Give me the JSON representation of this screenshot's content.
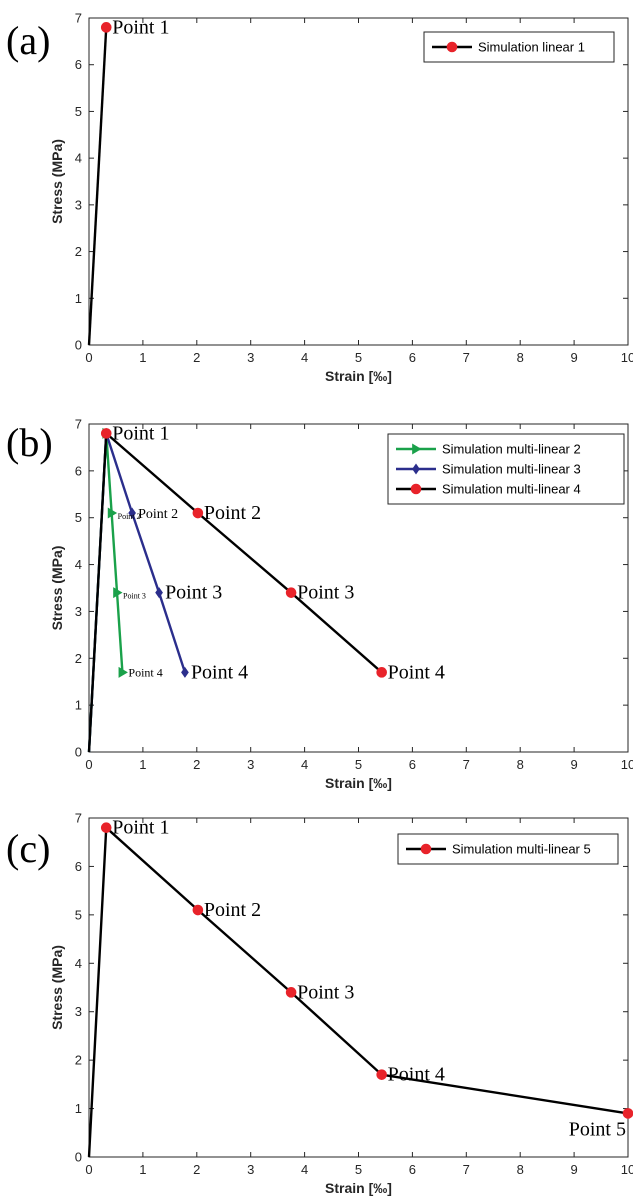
{
  "chart_data": [
    {
      "type": "line",
      "panel_label": "(a)",
      "xlabel": "Strain [‰]",
      "ylabel": "Stress (MPa)",
      "xlim": [
        0,
        10
      ],
      "ylim": [
        0,
        7
      ],
      "xticks": [
        0,
        1,
        2,
        3,
        4,
        5,
        6,
        7,
        8,
        9,
        10
      ],
      "yticks": [
        0,
        1,
        2,
        3,
        4,
        5,
        6,
        7
      ],
      "grid": false,
      "legend_position": "top-right",
      "series": [
        {
          "name": "Simulation linear 1",
          "color": "#000000",
          "marker": "circle",
          "marker_color": "#e8232a",
          "x": [
            0,
            0.32
          ],
          "y": [
            0,
            6.8
          ],
          "marked_indices": [
            1
          ]
        }
      ],
      "annotations": [
        {
          "text": "Point 1",
          "x": 0.32,
          "y": 6.8,
          "size": "large"
        }
      ]
    },
    {
      "type": "line",
      "panel_label": "(b)",
      "xlabel": "Strain [‰]",
      "ylabel": "Stress (MPa)",
      "xlim": [
        0,
        10
      ],
      "ylim": [
        0,
        7
      ],
      "xticks": [
        0,
        1,
        2,
        3,
        4,
        5,
        6,
        7,
        8,
        9,
        10
      ],
      "yticks": [
        0,
        1,
        2,
        3,
        4,
        5,
        6,
        7
      ],
      "grid": false,
      "legend_position": "top-right",
      "series": [
        {
          "name": "Simulation multi-linear 2",
          "color": "#1aa14a",
          "marker": "triangle-right",
          "marker_color": "#1aa14a",
          "x": [
            0,
            0.32,
            0.42,
            0.52,
            0.62
          ],
          "y": [
            0,
            6.8,
            5.1,
            3.4,
            1.7
          ],
          "marked_indices": [
            1,
            2,
            3,
            4
          ]
        },
        {
          "name": "Simulation multi-linear 3",
          "color": "#2b2e8c",
          "marker": "diamond",
          "marker_color": "#2b2e8c",
          "x": [
            0,
            0.32,
            0.8,
            1.3,
            1.78
          ],
          "y": [
            0,
            6.8,
            5.1,
            3.4,
            1.7
          ],
          "marked_indices": [
            1,
            2,
            3,
            4
          ]
        },
        {
          "name": "Simulation multi-linear 4",
          "color": "#000000",
          "marker": "circle",
          "marker_color": "#e8232a",
          "x": [
            0,
            0.32,
            2.02,
            3.75,
            5.43
          ],
          "y": [
            0,
            6.8,
            5.1,
            3.4,
            1.7
          ],
          "marked_indices": [
            1,
            2,
            3,
            4
          ]
        }
      ],
      "annotations": [
        {
          "text": "Point 1",
          "x": 0.32,
          "y": 6.8,
          "size": "large"
        },
        {
          "text": "Point 2",
          "x": 0.42,
          "y": 5.1,
          "size": "tiny"
        },
        {
          "text": "Point 3",
          "x": 0.52,
          "y": 3.4,
          "size": "tiny"
        },
        {
          "text": "Point 4",
          "x": 0.62,
          "y": 1.7,
          "size": "small"
        },
        {
          "text": "Point 2",
          "x": 0.8,
          "y": 5.1,
          "size": "medium"
        },
        {
          "text": "Point 3",
          "x": 1.3,
          "y": 3.4,
          "size": "large"
        },
        {
          "text": "Point 4",
          "x": 1.78,
          "y": 1.7,
          "size": "large"
        },
        {
          "text": "Point 2",
          "x": 2.02,
          "y": 5.1,
          "size": "large"
        },
        {
          "text": "Point 3",
          "x": 3.75,
          "y": 3.4,
          "size": "large"
        },
        {
          "text": "Point 4",
          "x": 5.43,
          "y": 1.7,
          "size": "large"
        }
      ]
    },
    {
      "type": "line",
      "panel_label": "(c)",
      "xlabel": "Strain [‰]",
      "ylabel": "Stress (MPa)",
      "xlim": [
        0,
        10
      ],
      "ylim": [
        0,
        7
      ],
      "xticks": [
        0,
        1,
        2,
        3,
        4,
        5,
        6,
        7,
        8,
        9,
        10
      ],
      "yticks": [
        0,
        1,
        2,
        3,
        4,
        5,
        6,
        7
      ],
      "grid": false,
      "legend_position": "top-right",
      "series": [
        {
          "name": "Simulation multi-linear 5",
          "color": "#000000",
          "marker": "circle",
          "marker_color": "#e8232a",
          "x": [
            0,
            0.32,
            2.02,
            3.75,
            5.43,
            10
          ],
          "y": [
            0,
            6.8,
            5.1,
            3.4,
            1.7,
            0.9
          ],
          "marked_indices": [
            1,
            2,
            3,
            4,
            5
          ]
        }
      ],
      "annotations": [
        {
          "text": "Point 1",
          "x": 0.32,
          "y": 6.8,
          "size": "large"
        },
        {
          "text": "Point 2",
          "x": 2.02,
          "y": 5.1,
          "size": "large"
        },
        {
          "text": "Point 3",
          "x": 3.75,
          "y": 3.4,
          "size": "large"
        },
        {
          "text": "Point 4",
          "x": 5.43,
          "y": 1.7,
          "size": "large"
        },
        {
          "text": "Point 5",
          "x": 10,
          "y": 0.9,
          "size": "large",
          "below": true
        }
      ]
    }
  ]
}
